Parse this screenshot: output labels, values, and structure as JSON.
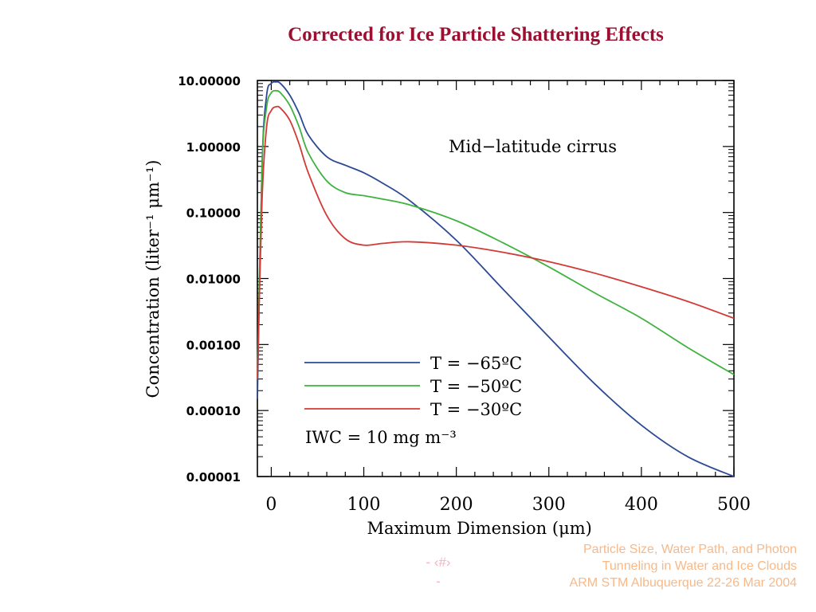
{
  "slide": {
    "title": "Corrected for Ice Particle Shattering Effects",
    "footer_lines": [
      "Particle Size, Water Path, and Photon",
      "Tunneling in Water and Ice Clouds",
      "ARM STM Albuquerque 22-26 Mar 2004"
    ],
    "slide_number": "- ‹#›",
    "slide_number_dash": "-"
  },
  "chart_data": {
    "type": "line",
    "title": "",
    "annotation": "Mid−latitude cirrus",
    "xlabel": "Maximum Dimension (μm)",
    "ylabel": "Concentration (liter⁻¹ μm⁻¹)",
    "xlim": [
      -15,
      500
    ],
    "ylim": [
      1e-05,
      10
    ],
    "yscale": "log",
    "x_ticks": [
      0,
      100,
      200,
      300,
      400,
      500
    ],
    "y_ticks": [
      {
        "value": 10,
        "label": "10.00000"
      },
      {
        "value": 1,
        "label": "1.00000"
      },
      {
        "value": 0.1,
        "label": "0.10000"
      },
      {
        "value": 0.01,
        "label": "0.01000"
      },
      {
        "value": 0.001,
        "label": "0.00100"
      },
      {
        "value": 0.0001,
        "label": "0.00010"
      },
      {
        "value": 1e-05,
        "label": "0.00001"
      }
    ],
    "legend_position": "lower-left",
    "iwc_label": "IWC = 10 mg m⁻³",
    "series": [
      {
        "name": "T = −65ºC",
        "color": "#2c4a94",
        "x": [
          -15,
          -10,
          -5,
          0,
          5,
          10,
          20,
          30,
          40,
          60,
          80,
          100,
          120,
          150,
          200,
          250,
          300,
          350,
          400,
          450,
          500
        ],
        "y": [
          0.00015,
          0.5,
          6,
          9,
          9.5,
          9,
          6,
          3.2,
          1.5,
          0.7,
          0.52,
          0.4,
          0.28,
          0.15,
          0.038,
          0.007,
          0.0013,
          0.00025,
          6e-05,
          2e-05,
          1e-05
        ]
      },
      {
        "name": "T = −50ºC",
        "color": "#3fb23f",
        "x": [
          -15,
          -10,
          -5,
          0,
          5,
          10,
          20,
          30,
          40,
          60,
          80,
          100,
          120,
          150,
          200,
          250,
          300,
          350,
          400,
          450,
          500
        ],
        "y": [
          0.0003,
          0.5,
          4,
          6.5,
          7,
          6.5,
          4.2,
          2,
          0.8,
          0.3,
          0.2,
          0.18,
          0.16,
          0.13,
          0.075,
          0.035,
          0.015,
          0.006,
          0.0025,
          0.0009,
          0.00035
        ]
      },
      {
        "name": "T = −30ºC",
        "color": "#d23a36",
        "x": [
          -15,
          -10,
          -5,
          0,
          5,
          10,
          20,
          30,
          40,
          60,
          80,
          100,
          120,
          150,
          200,
          250,
          300,
          350,
          400,
          450,
          500
        ],
        "y": [
          0.0003,
          0.15,
          2,
          3.5,
          4,
          3.8,
          2.5,
          1.1,
          0.4,
          0.09,
          0.04,
          0.032,
          0.034,
          0.036,
          0.032,
          0.025,
          0.018,
          0.012,
          0.0075,
          0.0045,
          0.0025
        ]
      }
    ]
  }
}
